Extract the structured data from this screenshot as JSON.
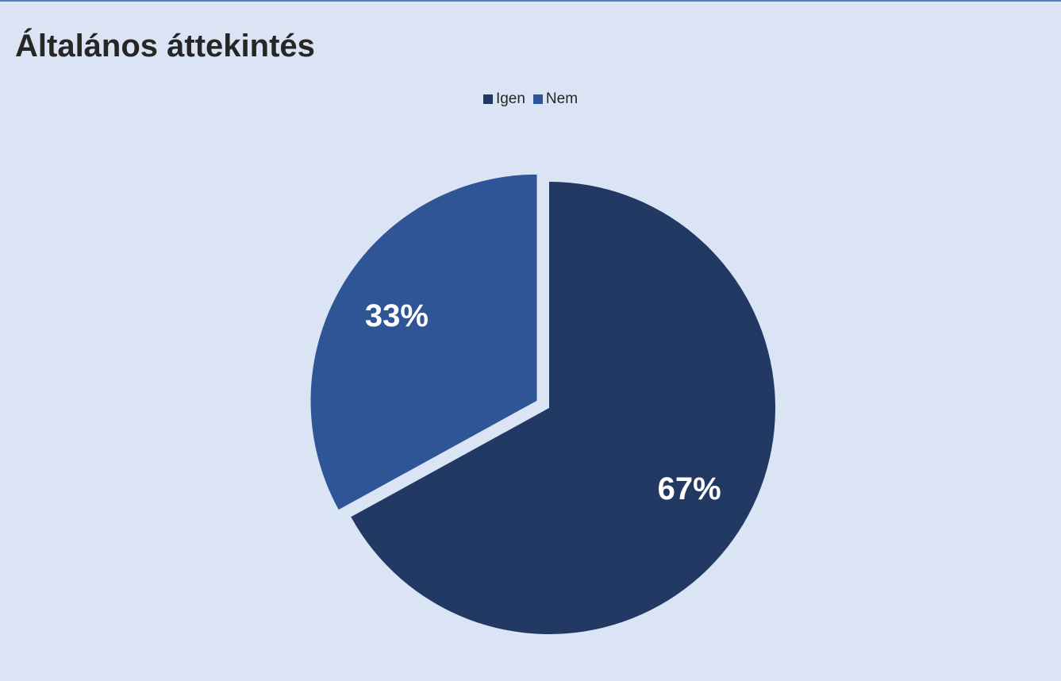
{
  "chart_data": {
    "type": "pie",
    "title": "Általános áttekintés",
    "legend_position": "top",
    "categories": [
      "Igen",
      "Nem"
    ],
    "values": [
      67,
      33
    ],
    "data_labels": [
      "67%",
      "33%"
    ],
    "colors": [
      "#213963",
      "#2f5597"
    ],
    "exploded_slice": "Nem"
  }
}
